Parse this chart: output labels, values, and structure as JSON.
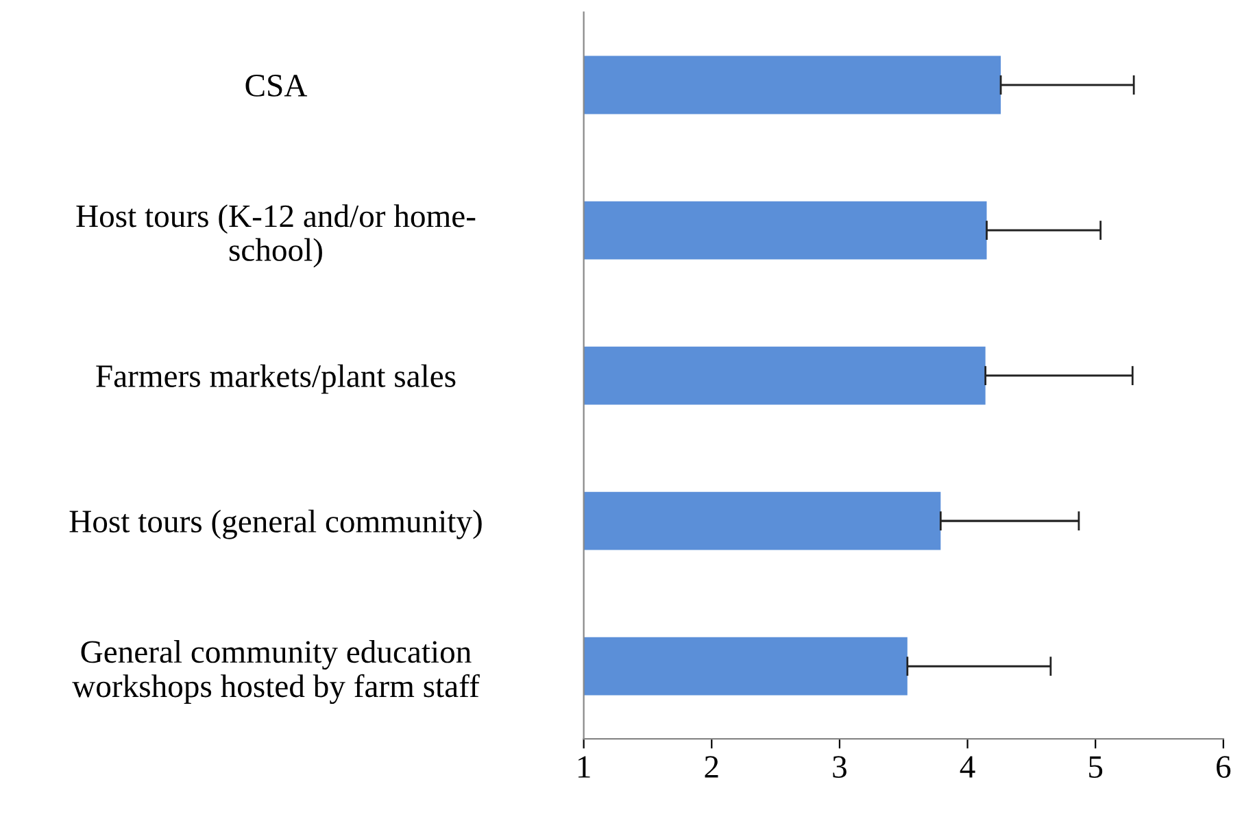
{
  "chart_data": {
    "type": "bar",
    "orientation": "horizontal",
    "categories": [
      "CSA",
      "Host tours (K-12 and/or home-\nschool)",
      "Farmers markets/plant sales",
      "Host tours (general community)",
      "General community education\nworkshops hosted by farm staff"
    ],
    "values": [
      4.26,
      4.15,
      4.14,
      3.79,
      3.53
    ],
    "errors": [
      [
        4.26,
        5.3
      ],
      [
        4.15,
        5.04
      ],
      [
        4.14,
        5.29
      ],
      [
        3.79,
        4.87
      ],
      [
        3.53,
        4.65
      ]
    ],
    "color": "#5b8fd8",
    "xlim": [
      1,
      6
    ],
    "xticks": [
      1,
      2,
      3,
      4,
      5,
      6
    ],
    "grid": false,
    "legend": false
  }
}
